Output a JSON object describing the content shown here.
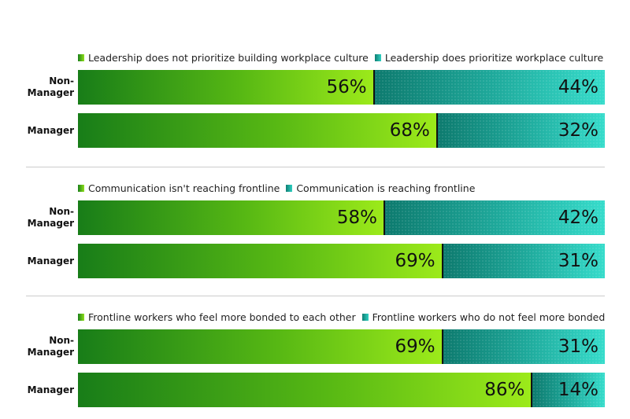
{
  "chart_data": [
    {
      "type": "bar",
      "stacked": "horizontal-100%",
      "categories": [
        "Non-Manager",
        "Manager"
      ],
      "series": [
        {
          "name": "Leadership does not prioritize building workplace culture",
          "values": [
            56,
            68
          ],
          "labels": [
            "56%",
            "68%"
          ]
        },
        {
          "name": "Leadership does prioritize workplace culture",
          "values": [
            44,
            32
          ],
          "labels": [
            "44%",
            "32%"
          ]
        }
      ],
      "legend": "top-left"
    },
    {
      "type": "bar",
      "stacked": "horizontal-100%",
      "categories": [
        "Non-Manager",
        "Manager"
      ],
      "series": [
        {
          "name": "Communication isn't reaching frontline",
          "values": [
            58,
            69
          ],
          "labels": [
            "58%",
            "69%"
          ]
        },
        {
          "name": "Communication is reaching frontline",
          "values": [
            42,
            31
          ],
          "labels": [
            "42%",
            "31%"
          ]
        }
      ],
      "legend": "top-left"
    },
    {
      "type": "bar",
      "stacked": "horizontal-100%",
      "categories": [
        "Non-Manager",
        "Manager"
      ],
      "series": [
        {
          "name": "Frontline workers who feel more bonded to each other",
          "values": [
            69,
            86
          ],
          "labels": [
            "69%",
            "86%"
          ]
        },
        {
          "name": "Frontline workers who do not feel more bonded",
          "values": [
            31,
            14
          ],
          "labels": [
            "31%",
            "14%"
          ]
        }
      ],
      "legend": "top-left"
    }
  ],
  "colors": {
    "series1": "#57b814",
    "series2": "#1ea89a"
  }
}
